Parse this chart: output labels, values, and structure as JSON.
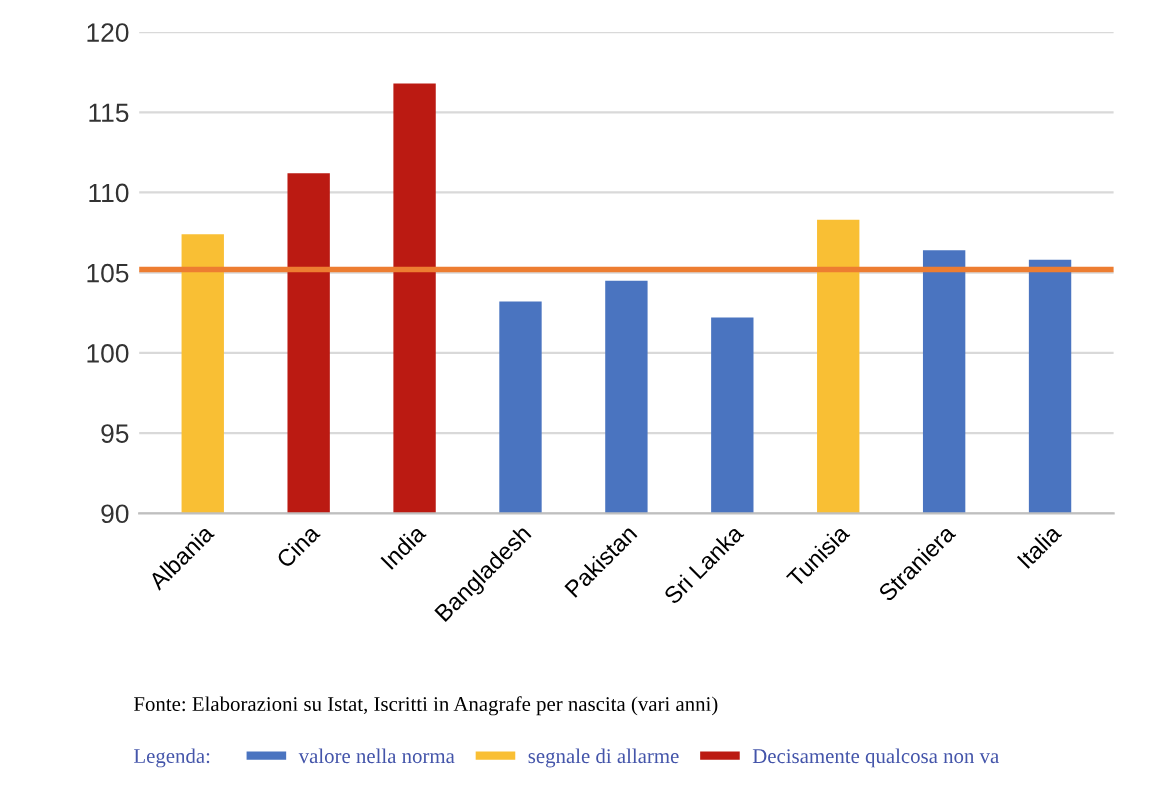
{
  "chart_data": {
    "type": "bar",
    "categories": [
      "Albania",
      "Cina",
      "India",
      "Bangladesh",
      "Pakistan",
      "Sri Lanka",
      "Tunisia",
      "Straniera",
      "Italia"
    ],
    "series": [
      {
        "name": "valore nella norma",
        "color": "#4a74c0",
        "values": [
          null,
          null,
          null,
          103.2,
          104.5,
          102.2,
          null,
          106.4,
          105.8
        ]
      },
      {
        "name": "segnale di allarme",
        "color": "#f9bf34",
        "values": [
          107.4,
          null,
          null,
          null,
          null,
          null,
          108.3,
          null,
          null
        ]
      },
      {
        "name": "Decisamente qualcosa non va",
        "color": "#bb1a12",
        "values": [
          null,
          111.2,
          116.8,
          null,
          null,
          null,
          null,
          null,
          null
        ]
      }
    ],
    "ylim": [
      90,
      120
    ],
    "yticks": [
      90,
      95,
      100,
      105,
      110,
      115,
      120
    ],
    "grid": "y",
    "ref_lines": [
      {
        "axis": "y",
        "value": 105.2,
        "color": "#ed7d31"
      }
    ],
    "legend": "bottom",
    "legend_title": "Legenda:",
    "annotations": [
      "Fonte: Elaborazioni su Istat, Iscritti in Anagrafe per nascita (vari anni)"
    ]
  }
}
